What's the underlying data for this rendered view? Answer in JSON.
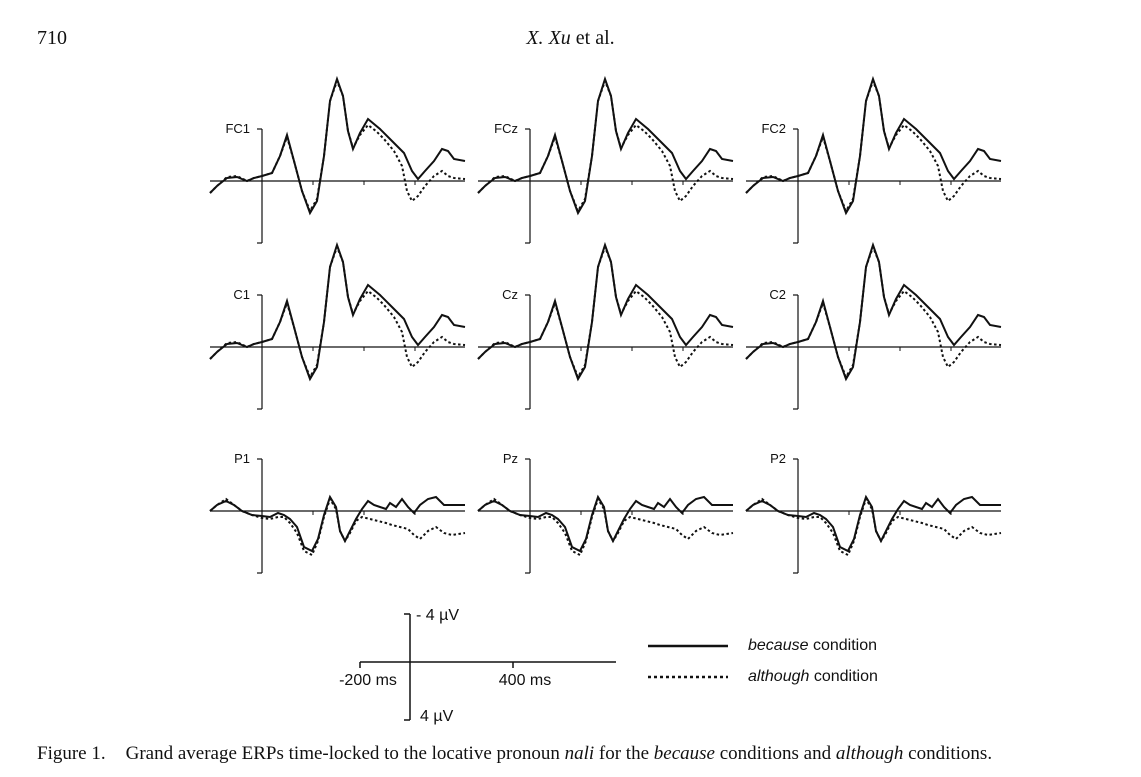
{
  "header": {
    "page_number": "710",
    "author_initial": "X.",
    "author_surname": "Xu",
    "author_suffix": "et al."
  },
  "figure": {
    "electrodes": [
      "FC1",
      "FCz",
      "FC2",
      "C1",
      "Cz",
      "C2",
      "P1",
      "Pz",
      "P2"
    ],
    "scale": {
      "neg_label": "- 4 µV",
      "pos_label": "4 µV",
      "x_start_label": "-200 ms",
      "x_mid_label": "400 ms"
    },
    "legend": [
      {
        "emph": "because",
        "rest": " condition",
        "style": "solid"
      },
      {
        "emph": "although",
        "rest": " condition",
        "style": "dotted"
      }
    ]
  },
  "caption": {
    "label": "Figure 1.",
    "t1": "Grand average ERPs time-locked to the locative pronoun ",
    "e1": "nali",
    "t2": " for the ",
    "e2": "because",
    "t3": " conditions and ",
    "e3": "although",
    "t4": " conditions."
  },
  "chart_data": {
    "type": "line",
    "x_unit": "ms",
    "y_unit": "µV",
    "negative_up": true,
    "panels": [
      "FC1",
      "FCz",
      "FC2",
      "C1",
      "Cz",
      "C2",
      "P1",
      "Pz",
      "P2"
    ],
    "series_names": [
      "because condition",
      "although condition"
    ],
    "xlim": [
      -200,
      800
    ],
    "ylim": [
      -4,
      4
    ]
  }
}
